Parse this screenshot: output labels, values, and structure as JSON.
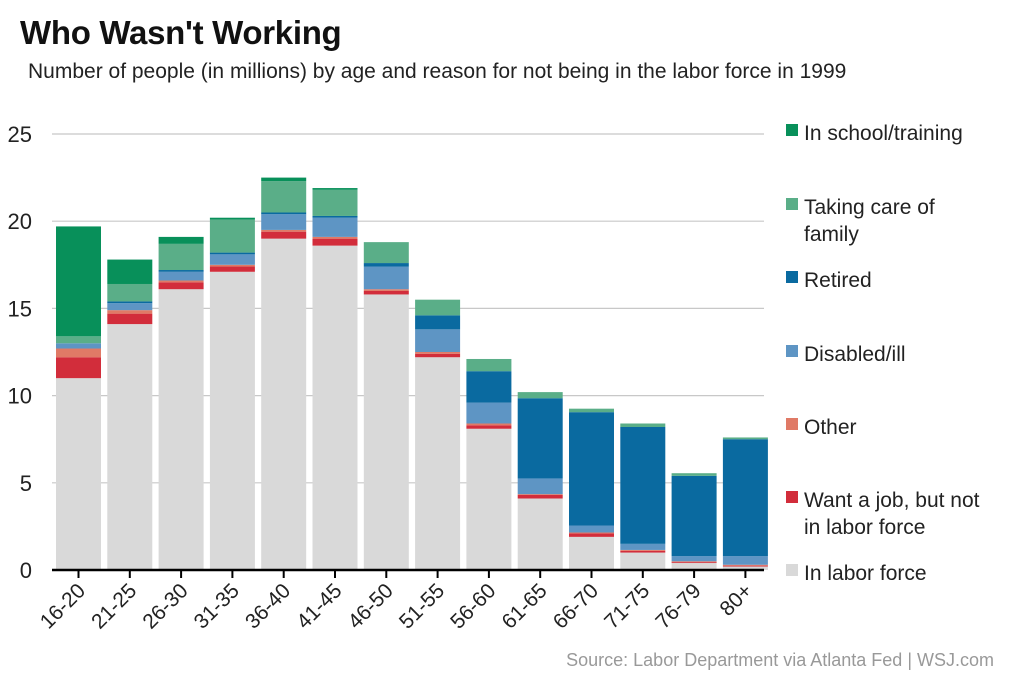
{
  "header": {
    "title": "Who Wasn't Working",
    "subtitle": "Number of people (in millions) by age and reason for not being in the labor force in 1999"
  },
  "footer": {
    "source": "Source: Labor Department via Atlanta Fed  |  WSJ.com"
  },
  "chart_data": {
    "type": "bar",
    "stacked": true,
    "title": "Who Wasn't Working",
    "subtitle": "Number of people (in millions) by age and reason for not being in the labor force in 1999",
    "categories": [
      "16-20",
      "21-25",
      "26-30",
      "31-35",
      "36-40",
      "41-45",
      "46-50",
      "51-55",
      "56-60",
      "61-65",
      "66-70",
      "71-75",
      "76-79",
      "80+"
    ],
    "ylim": [
      0,
      25
    ],
    "yticks": [
      0,
      5,
      10,
      15,
      20,
      25
    ],
    "grid": true,
    "legend_position": "right",
    "series": [
      {
        "name": "In labor force",
        "color": "#d9d9d9",
        "values": [
          11.0,
          14.1,
          16.1,
          17.1,
          19.0,
          18.6,
          15.8,
          12.2,
          8.1,
          4.1,
          1.9,
          1.0,
          0.4,
          0.2
        ]
      },
      {
        "name": "Want a job, but not in labor force",
        "color": "#d22d3b",
        "values": [
          1.2,
          0.6,
          0.4,
          0.3,
          0.4,
          0.4,
          0.2,
          0.2,
          0.2,
          0.2,
          0.2,
          0.1,
          0.05,
          0.05
        ]
      },
      {
        "name": "Other",
        "color": "#e07a66",
        "values": [
          0.5,
          0.2,
          0.1,
          0.1,
          0.1,
          0.1,
          0.1,
          0.1,
          0.1,
          0.05,
          0.05,
          0.05,
          0.05,
          0.05
        ]
      },
      {
        "name": "Disabled/ill",
        "color": "#5e95c4",
        "values": [
          0.3,
          0.4,
          0.5,
          0.6,
          0.9,
          1.1,
          1.3,
          1.3,
          1.2,
          0.9,
          0.4,
          0.35,
          0.3,
          0.5
        ]
      },
      {
        "name": "Retired",
        "color": "#0a6aa0",
        "values": [
          0.0,
          0.1,
          0.1,
          0.1,
          0.1,
          0.1,
          0.2,
          0.8,
          1.8,
          4.6,
          6.5,
          6.7,
          4.6,
          6.7
        ]
      },
      {
        "name": "Taking care of family",
        "color": "#5aae88",
        "values": [
          0.4,
          1.0,
          1.5,
          1.9,
          1.8,
          1.5,
          1.2,
          0.9,
          0.7,
          0.35,
          0.2,
          0.2,
          0.15,
          0.1
        ]
      },
      {
        "name": "In school/training",
        "color": "#08905a",
        "values": [
          6.3,
          1.4,
          0.4,
          0.1,
          0.2,
          0.1,
          0.0,
          0.0,
          0.0,
          0.0,
          0.0,
          0.0,
          0.0,
          0.0
        ]
      }
    ],
    "legend_order": [
      {
        "lines": [
          "In school/training"
        ],
        "color": "#08905a"
      },
      {
        "lines": [
          "Taking care of",
          "family"
        ],
        "color": "#5aae88"
      },
      {
        "lines": [
          "Retired"
        ],
        "color": "#0a6aa0"
      },
      {
        "lines": [
          "Disabled/ill"
        ],
        "color": "#5e95c4"
      },
      {
        "lines": [
          "Other"
        ],
        "color": "#e07a66"
      },
      {
        "lines": [
          "Want a job, but not",
          "in labor force"
        ],
        "color": "#d22d3b"
      },
      {
        "lines": [
          "In labor force"
        ],
        "color": "#d9d9d9"
      }
    ]
  }
}
